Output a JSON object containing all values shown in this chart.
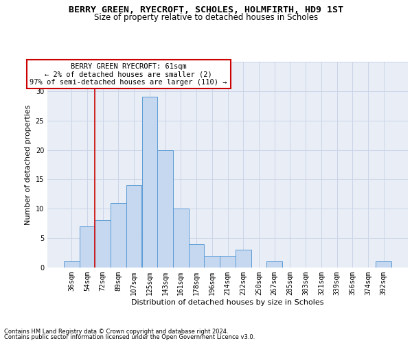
{
  "title1": "BERRY GREEN, RYECROFT, SCHOLES, HOLMFIRTH, HD9 1ST",
  "title2": "Size of property relative to detached houses in Scholes",
  "xlabel": "Distribution of detached houses by size in Scholes",
  "ylabel": "Number of detached properties",
  "bar_labels": [
    "36sqm",
    "54sqm",
    "72sqm",
    "89sqm",
    "107sqm",
    "125sqm",
    "143sqm",
    "161sqm",
    "178sqm",
    "196sqm",
    "214sqm",
    "232sqm",
    "250sqm",
    "267sqm",
    "285sqm",
    "303sqm",
    "321sqm",
    "339sqm",
    "356sqm",
    "374sqm",
    "392sqm"
  ],
  "bar_values": [
    1,
    7,
    8,
    11,
    14,
    29,
    20,
    10,
    4,
    2,
    2,
    3,
    0,
    1,
    0,
    0,
    0,
    0,
    0,
    0,
    1
  ],
  "bar_color": "#c5d8f0",
  "bar_edge_color": "#5b9bd5",
  "bar_edge_width": 0.7,
  "grid_color": "#ccd5e8",
  "background_color": "#e8edf6",
  "redline_x": 1.5,
  "annotation_text": "BERRY GREEN RYECROFT: 61sqm\n← 2% of detached houses are smaller (2)\n97% of semi-detached houses are larger (110) →",
  "annotation_box_color": "#ffffff",
  "redline_color": "#cc0000",
  "footnote1": "Contains HM Land Registry data © Crown copyright and database right 2024.",
  "footnote2": "Contains public sector information licensed under the Open Government Licence v3.0.",
  "ylim": [
    0,
    35
  ],
  "yticks": [
    0,
    5,
    10,
    15,
    20,
    25,
    30,
    35
  ],
  "title1_fontsize": 9.5,
  "title2_fontsize": 8.5,
  "ylabel_fontsize": 8,
  "xlabel_fontsize": 8,
  "tick_fontsize": 7,
  "footnote_fontsize": 6,
  "annot_fontsize": 7.5
}
